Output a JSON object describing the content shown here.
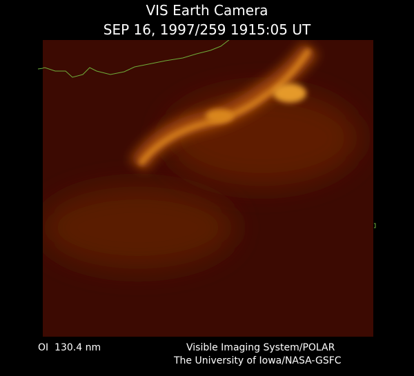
{
  "header": {
    "title": "VIS Earth Camera",
    "timestamp": "SEP 16, 1997/259 1915:05 UT"
  },
  "footer": {
    "wavelength": "OI  130.4 nm",
    "instrument": "Visible Imaging System/POLAR",
    "institution": "The University of Iowa/NASA-GSFC"
  }
}
